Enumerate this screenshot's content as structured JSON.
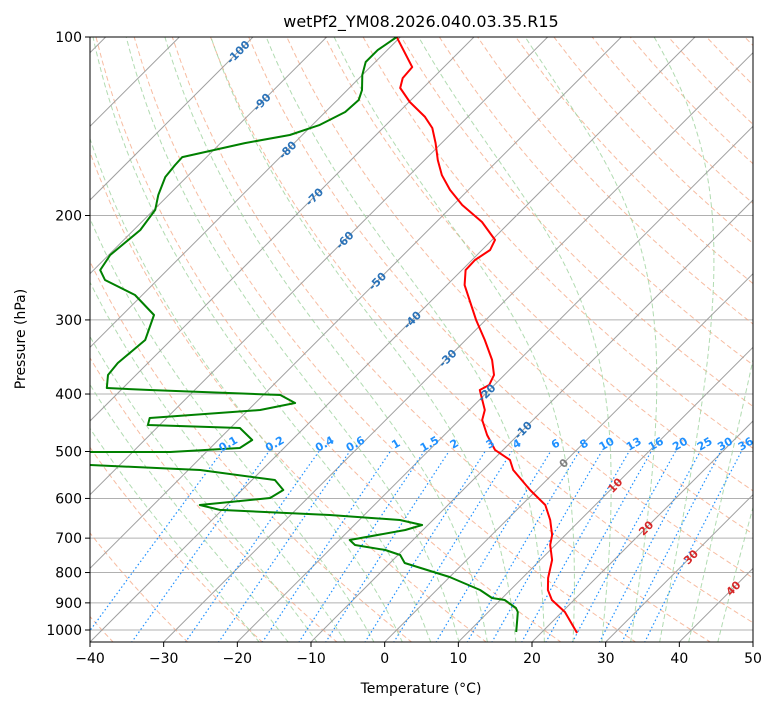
{
  "chart_data": {
    "type": "line",
    "subtype": "skew-t log-p",
    "title": "wetPf2_YM08.2026.040.03.35.R15",
    "xlabel": "Temperature (°C)",
    "ylabel": "Pressure (hPa)",
    "xlim": [
      -40,
      50
    ],
    "ylim": [
      1050,
      100
    ],
    "x_ticks": [
      "−40",
      "−30",
      "−20",
      "−10",
      "0",
      "10",
      "20",
      "30",
      "40",
      "50"
    ],
    "x_tick_values": [
      -40,
      -30,
      -20,
      -10,
      0,
      10,
      20,
      30,
      40,
      50
    ],
    "y_ticks": [
      "100",
      "200",
      "300",
      "400",
      "500",
      "600",
      "700",
      "800",
      "900",
      "1000"
    ],
    "y_tick_values": [
      100,
      200,
      300,
      400,
      500,
      600,
      700,
      800,
      900,
      1000
    ],
    "grid": true,
    "isotherm_labels": [
      "-100",
      "-90",
      "-80",
      "-70",
      "-60",
      "-50",
      "-40",
      "-30",
      "-20",
      "-10",
      "0",
      "10",
      "20",
      "30",
      "40"
    ],
    "isotherm_label_values": [
      -100,
      -90,
      -80,
      -70,
      -60,
      -50,
      -40,
      -30,
      -20,
      -10,
      0,
      10,
      20,
      30,
      40
    ],
    "mixing_ratio_labels": [
      "0.1",
      "0.2",
      "0.4",
      "0.6",
      "1",
      "1.5",
      "2",
      "3",
      "4",
      "6",
      "8",
      "10",
      "13",
      "16",
      "20",
      "25",
      "30",
      "36"
    ],
    "mixing_ratio_values": [
      0.1,
      0.2,
      0.4,
      0.6,
      1,
      1.5,
      2,
      3,
      4,
      6,
      8,
      10,
      13,
      16,
      20,
      25,
      30,
      36
    ],
    "colors": {
      "temperature": "#ff0000",
      "dewpoint": "#008000",
      "isotherm": "#a0a0a0",
      "dry_adiabat": "#f4a582",
      "moist_adiabat": "#9ed29e",
      "mixing_ratio": "#1e90ff",
      "label_cold": "#2a72b8",
      "label_zero": "#808080",
      "label_warm": "#d62728"
    },
    "series": [
      {
        "name": "Temperature",
        "pressure": [
          100,
          112.4,
          117.3,
          121.9,
          128.7,
          136.4,
          142.4,
          151,
          161.3,
          171,
          181.1,
          192,
          205.1,
          219.9,
          228.7,
          237.7,
          247.2,
          262,
          300.1,
          324.3,
          350.5,
          371.5,
          386.2,
          393.8,
          425.6,
          442.4,
          469,
          497,
          516.7,
          537.2,
          580.6,
          615.4,
          652.3,
          691.5,
          718.9,
          762.1,
          817.3,
          856.3,
          890.2,
          932.6,
          1011.8
        ],
        "temperature": [
          -80.5,
          -74.3,
          -74.1,
          -73.1,
          -69.9,
          -65.8,
          -63.3,
          -60.8,
          -58.2,
          -55.6,
          -52.5,
          -48.8,
          -43.8,
          -39.6,
          -38.9,
          -39.6,
          -39.5,
          -37.6,
          -31.3,
          -27.4,
          -23.7,
          -21.4,
          -20.7,
          -21.3,
          -17.9,
          -16.9,
          -14.2,
          -11.1,
          -7.7,
          -5.9,
          -0.9,
          3.2,
          5.9,
          8.2,
          9.3,
          11.6,
          13.5,
          15.1,
          17.0,
          20.4,
          24.9
        ]
      },
      {
        "name": "Dewpoint",
        "pressure": [
          100,
          105.2,
          110.2,
          115.9,
          122.9,
          127.7,
          133.8,
          140.7,
          146.3,
          151,
          159.4,
          164.4,
          172.2,
          184.7,
          195.7,
          211.6,
          233.1,
          247.2,
          256.9,
          272.3,
          294.3,
          324.3,
          354.6,
          371.5,
          390.8,
          393.8,
          401.5,
          414.2,
          425.6,
          439,
          451.1,
          456.4,
          478.2,
          493.2,
          500.9,
          500.9,
          512.8,
          525,
          527,
          537.2,
          558.5,
          580.6,
          598.9,
          615.4,
          627.4,
          639.9,
          652.3,
          665.1,
          678.2,
          705,
          718.9,
          733,
          747.3,
          770.9,
          814.1,
          856.3,
          883.3,
          890.2,
          918.3,
          932.6,
          961.8,
          1007.9
        ],
        "temperature": [
          -80.5,
          -81.3,
          -81.3,
          -80.0,
          -78.0,
          -77.1,
          -77.3,
          -79.0,
          -81.7,
          -86.7,
          -93.3,
          -93.2,
          -92.9,
          -91.4,
          -89.8,
          -89.1,
          -89.8,
          -89.1,
          -87.1,
          -81.0,
          -75.7,
          -73.5,
          -74.1,
          -73.8,
          -72.2,
          -66.1,
          -47.7,
          -44.6,
          -48.4,
          -62.3,
          -61.6,
          -48.7,
          -45.4,
          -46.0,
          -54.9,
          -65.8,
          -71.8,
          -71.0,
          -64.0,
          -48.4,
          -36.9,
          -34.4,
          -35.1,
          -43.7,
          -40.3,
          -24.7,
          -14.5,
          -10.8,
          -12.4,
          -18.6,
          -17.2,
          -12.4,
          -9.7,
          -8.0,
          0.0,
          5.9,
          8.6,
          10.6,
          13.2,
          14.0,
          15.0,
          16.5
        ]
      }
    ]
  }
}
